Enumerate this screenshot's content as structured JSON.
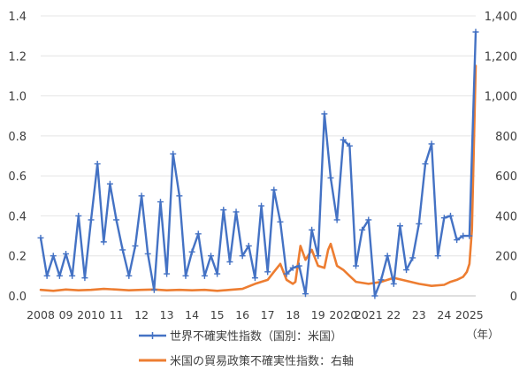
{
  "chart_data": {
    "type": "line",
    "title": "",
    "unit_label": "（年）",
    "x_ticks": [
      {
        "label": "2008",
        "year": 2008.0
      },
      {
        "label": "09",
        "year": 2009.0
      },
      {
        "label": "2010",
        "year": 2010.0
      },
      {
        "label": "11",
        "year": 2011.0
      },
      {
        "label": "12",
        "year": 2012.0
      },
      {
        "label": "13",
        "year": 2013.0
      },
      {
        "label": "14",
        "year": 2014.0
      },
      {
        "label": "15",
        "year": 2015.0
      },
      {
        "label": "16",
        "year": 2016.0
      },
      {
        "label": "17",
        "year": 2017.0
      },
      {
        "label": "18",
        "year": 2018.0
      },
      {
        "label": "19",
        "year": 2019.0
      },
      {
        "label": "2020",
        "year": 2020.0
      },
      {
        "label": "2021",
        "year": 2021.0
      },
      {
        "label": "22",
        "year": 2022.0
      },
      {
        "label": "23",
        "year": 2023.0
      },
      {
        "label": "24",
        "year": 2024.0
      },
      {
        "label": "2025",
        "year": 2025.0
      }
    ],
    "xlim": [
      2008.0,
      2025.25
    ],
    "y_left": {
      "min": 0,
      "max": 1.4,
      "ticks": [
        "0.0",
        "0.2",
        "0.4",
        "0.6",
        "0.8",
        "1.0",
        "1.2",
        "1.4"
      ]
    },
    "y_right": {
      "min": 0,
      "max": 1400,
      "ticks": [
        "0",
        "200",
        "400",
        "600",
        "800",
        "1,000",
        "1,200",
        "1,400"
      ]
    },
    "series": [
      {
        "name": "世界不確実性指数（国別：米国）",
        "axis": "left",
        "color": "#4472c4",
        "marker": "plus",
        "x": [
          2008.0,
          2008.25,
          2008.5,
          2008.75,
          2009.0,
          2009.25,
          2009.5,
          2009.75,
          2010.0,
          2010.25,
          2010.5,
          2010.75,
          2011.0,
          2011.25,
          2011.5,
          2011.75,
          2012.0,
          2012.25,
          2012.5,
          2012.75,
          2013.0,
          2013.25,
          2013.5,
          2013.75,
          2014.0,
          2014.25,
          2014.5,
          2014.75,
          2015.0,
          2015.25,
          2015.5,
          2015.75,
          2016.0,
          2016.25,
          2016.5,
          2016.75,
          2017.0,
          2017.25,
          2017.5,
          2017.75,
          2018.0,
          2018.25,
          2018.5,
          2018.75,
          2019.0,
          2019.25,
          2019.5,
          2019.75,
          2020.0,
          2020.25,
          2020.5,
          2020.75,
          2021.0,
          2021.25,
          2021.5,
          2021.75,
          2022.0,
          2022.25,
          2022.5,
          2022.75,
          2023.0,
          2023.25,
          2023.5,
          2023.75,
          2024.0,
          2024.25,
          2024.5,
          2024.75,
          2025.0,
          2025.25
        ],
        "values": [
          0.29,
          0.1,
          0.2,
          0.1,
          0.21,
          0.1,
          0.4,
          0.09,
          0.38,
          0.66,
          0.27,
          0.56,
          0.38,
          0.23,
          0.1,
          0.25,
          0.5,
          0.21,
          0.03,
          0.47,
          0.11,
          0.71,
          0.5,
          0.1,
          0.22,
          0.31,
          0.1,
          0.2,
          0.11,
          0.43,
          0.17,
          0.42,
          0.2,
          0.25,
          0.09,
          0.45,
          0.12,
          0.53,
          0.37,
          0.11,
          0.14,
          0.15,
          0.01,
          0.33,
          0.2,
          0.91,
          0.59,
          0.38,
          0.78,
          0.75,
          0.15,
          0.33,
          0.38,
          0.0,
          0.08,
          0.2,
          0.06,
          0.35,
          0.13,
          0.19,
          0.36,
          0.66,
          0.76,
          0.2,
          0.39,
          0.4,
          0.28,
          0.3,
          0.3,
          1.32
        ]
      },
      {
        "name": "米国の貿易政策不確実性指数：右軸",
        "axis": "right",
        "color": "#ed7d31",
        "marker": "none",
        "x": [
          2008.0,
          2008.5,
          2009.0,
          2009.5,
          2010.0,
          2010.5,
          2011.0,
          2011.5,
          2012.0,
          2012.5,
          2013.0,
          2013.5,
          2014.0,
          2014.5,
          2015.0,
          2015.5,
          2016.0,
          2016.5,
          2017.0,
          2017.25,
          2017.5,
          2017.75,
          2018.0,
          2018.1,
          2018.3,
          2018.5,
          2018.75,
          2019.0,
          2019.25,
          2019.4,
          2019.5,
          2019.75,
          2020.0,
          2020.25,
          2020.5,
          2021.0,
          2021.25,
          2021.5,
          2022.0,
          2022.5,
          2023.0,
          2023.5,
          2024.0,
          2024.25,
          2024.5,
          2024.75,
          2024.9,
          2025.0,
          2025.1,
          2025.25
        ],
        "values": [
          30,
          25,
          32,
          28,
          30,
          35,
          32,
          28,
          30,
          32,
          28,
          30,
          28,
          30,
          25,
          30,
          35,
          60,
          80,
          120,
          160,
          80,
          60,
          70,
          250,
          180,
          230,
          150,
          140,
          230,
          260,
          150,
          130,
          100,
          70,
          60,
          65,
          70,
          90,
          75,
          60,
          50,
          55,
          70,
          80,
          95,
          120,
          160,
          330,
          1150
        ]
      }
    ]
  }
}
